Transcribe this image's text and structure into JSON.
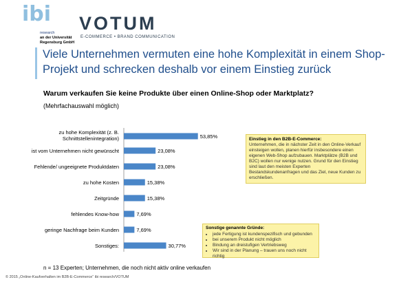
{
  "header": {
    "ibi_line1": "research",
    "ibi_line2": "an der Universität",
    "ibi_line3": "Regensburg GmbH",
    "votum": "VOTUM",
    "votum_sub": "E-COMMERCE • BRAND COMMUNICATION"
  },
  "title": "Viele Unternehmen vermuten eine hohe Komplexität in einem Shop-Projekt und schrecken deshalb vor einem Einstieg zurück",
  "question": "Warum verkaufen Sie keine Produkte über einen Online-Shop oder Marktplatz?",
  "subquestion": "(Mehrfachauswahl möglich)",
  "chart_data": {
    "type": "bar",
    "orientation": "horizontal",
    "categories": [
      "zu hohe Komplexität (z. B. Schnittstellenintegration)",
      "ist vom Unternehmen nicht gewünscht",
      "Fehlende/ ungeeignete Produktdaten",
      "zu hohe Kosten",
      "Zeitgründe",
      "fehlendes Know-how",
      "geringe Nachfrage beim Kunden",
      "Sonstiges:"
    ],
    "values": [
      53.85,
      23.08,
      23.08,
      15.38,
      15.38,
      7.69,
      7.69,
      30.77
    ],
    "value_labels": [
      "53,85%",
      "23,08%",
      "23,08%",
      "15,38%",
      "15,38%",
      "7,69%",
      "7,69%",
      "30,77%"
    ],
    "xlim": [
      0,
      60
    ],
    "bar_color": "#4a86c8"
  },
  "box1": {
    "title": "Einstieg in den B2B-E-Commerce:",
    "text": "Unternehmen, die in nächster Zeit in den Online-Verkauf einsteigen wollen, planen hierfür insbesondere einen eigenen Web-Shop aufzubauen. Marktplätze (B2B und B2C) wollen nur wenige nutzen. Grund für den Einstieg sind laut den meisten Experten Bestandskundenanfragen und das Ziel, neue Kunden zu erschließen."
  },
  "box2": {
    "title": "Sonstige genannte Gründe:",
    "items": [
      "jede Fertigung ist kundenspezifisch und gebunden",
      "bei unserem Produkt nicht möglich",
      "Bindung an dreistufigen Vertriebsweg",
      "Wir sind in der Planung – trauen uns noch nicht richtig"
    ]
  },
  "note": "n = 13 Experten; Unternehmen, die noch nicht aktiv online verkaufen",
  "copyright": "© 2015 „Online-Kaufverhalten im B2B-E-Commerce“ ibi research/VOTUM"
}
